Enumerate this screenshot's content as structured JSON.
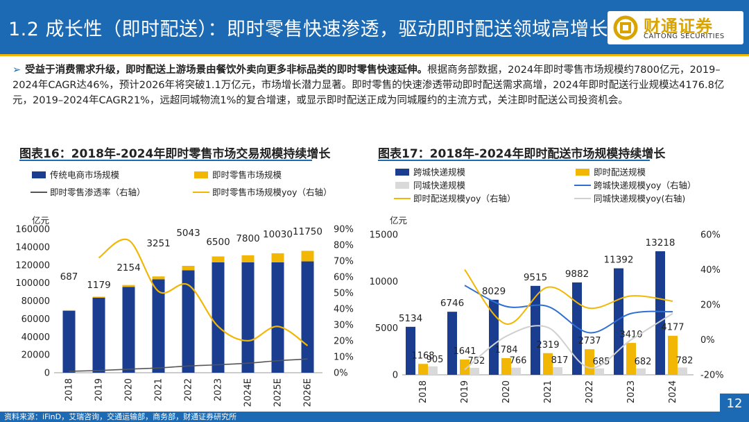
{
  "header": {
    "title": "1.2 成长性（即时配送）：即时零售快速渗透，驱动即时配送领域高增长",
    "logo_cn": "财通证券",
    "logo_en": "CAITONG SECURITIES",
    "brand_color": "#1c6ab4",
    "accent_color": "#f2b705"
  },
  "summary": {
    "bold": "受益于消费需求升级，即时配送上游场景由餐饮外卖向更多非标品类的即时零售快速延伸。",
    "text": "根据商务部数据，2024年即时零售市场规模约7800亿元，2019–2024年CAGR达46%，预计2026年将突破1.1万亿元，市场增长潜力显著。即时零售的快速渗透带动即时配送需求高增，2024年即时配送行业规模达4176.8亿元，2019–2024年CAGR21%，远超同城物流1%的复合增速，或显示即时配送正成为同城履约的主流方式，关注即时配送公司投资机会。"
  },
  "chart_titles": {
    "left": "图表16：2018年-2024年即时零售市场交易规模持续增长",
    "right": "图表17：2018年-2024年即时配送市场规模持续增长"
  },
  "footer": {
    "source": "资料来源：iFinD，艾瑞咨询，交通运输部，商务部，财通证券研究所",
    "page": "12"
  },
  "chart_data": [
    {
      "type": "bar",
      "stacked": true,
      "categories": [
        "2018",
        "2019",
        "2020",
        "2021",
        "2022",
        "2023",
        "2024E",
        "2025E",
        "2026E"
      ],
      "ylabel": "亿元",
      "ylim": [
        0,
        160000
      ],
      "yticks": [
        0,
        20000,
        40000,
        60000,
        80000,
        100000,
        120000,
        140000,
        160000
      ],
      "y2lim": [
        0,
        90
      ],
      "y2ticks": [
        "0%",
        "10%",
        "20%",
        "30%",
        "40%",
        "50%",
        "60%",
        "70%",
        "80%",
        "90%"
      ],
      "series": [
        {
          "name": "传统电商市场规模",
          "kind": "bar",
          "color": "#1a3d8f",
          "values": [
            69000,
            83500,
            95500,
            104000,
            114000,
            123000,
            123000,
            123000,
            124000
          ]
        },
        {
          "name": "即时零售市场规模",
          "kind": "bar",
          "color": "#f2b705",
          "values": [
            687,
            1179,
            2154,
            3251,
            5043,
            6500,
            7800,
            10030,
            11750
          ]
        },
        {
          "name": "即时零售渗透率（右轴）",
          "kind": "line",
          "axis": "right",
          "color": "#555555",
          "values": [
            0.9,
            1.4,
            2.2,
            3.0,
            4.2,
            5.0,
            6.0,
            7.5,
            8.6
          ]
        },
        {
          "name": "即时零售市场规模yoy（右轴）",
          "kind": "line",
          "axis": "right",
          "color": "#f2b705",
          "values": [
            null,
            72,
            83,
            51,
            55,
            29,
            20,
            29,
            17
          ]
        }
      ],
      "data_labels": [
        "687",
        "1179",
        "2154",
        "3251",
        "5043",
        "6500",
        "7800",
        "10030",
        "11750"
      ],
      "legend": [
        "传统电商市场规模",
        "即时零售市场规模",
        "即时零售渗透率（右轴）",
        "即时零售市场规模yoy（右轴）"
      ]
    },
    {
      "type": "bar",
      "categories": [
        "2018",
        "2019",
        "2020",
        "2021",
        "2022",
        "2023",
        "2024"
      ],
      "ylabel": "亿元",
      "ylim": [
        0,
        15000
      ],
      "yticks": [
        0,
        5000,
        10000,
        15000
      ],
      "y2lim": [
        -20,
        60
      ],
      "y2ticks": [
        "-20%",
        "0%",
        "20%",
        "40%",
        "60%"
      ],
      "series": [
        {
          "name": "跨城快递规模",
          "kind": "bar",
          "color": "#1a3d8f",
          "values": [
            5134,
            6746,
            8029,
            9515,
            9882,
            11392,
            13218
          ]
        },
        {
          "name": "即时配送规模",
          "kind": "bar",
          "color": "#f2b705",
          "values": [
            1168,
            1641,
            1784,
            2319,
            2737,
            3410,
            4177
          ]
        },
        {
          "name": "同城快递规模",
          "kind": "bar",
          "color": "#d9d9d9",
          "values": [
            905,
            752,
            766,
            817,
            685,
            682,
            782
          ]
        },
        {
          "name": "跨城快递规模yoy（右轴）",
          "kind": "line",
          "axis": "right",
          "color": "#2f6fd1",
          "values": [
            null,
            31,
            19,
            19,
            4,
            15,
            16
          ]
        },
        {
          "name": "即时配送规模yoy（右轴）",
          "kind": "line",
          "axis": "right",
          "color": "#f2b705",
          "values": [
            null,
            40,
            9,
            30,
            18,
            25,
            22
          ]
        },
        {
          "name": "同城快递规模yoy(右轴)",
          "kind": "line",
          "axis": "right",
          "color": "#d0d0d0",
          "values": [
            null,
            -17,
            2,
            7,
            -16,
            0,
            15
          ]
        }
      ],
      "data_labels_main": [
        "5134",
        "6746",
        "8029",
        "9515",
        "9882",
        "11392",
        "13218"
      ],
      "data_labels_instant": [
        "1168",
        "1641",
        "1784",
        "2319",
        "2737",
        "3410",
        "4177"
      ],
      "data_labels_city": [
        "905",
        "752",
        "766",
        "817",
        "685",
        "682",
        "782"
      ],
      "legend": [
        "跨城快递规模",
        "即时配送规模",
        "同城快递规模",
        "跨城快递规模yoy（右轴）",
        "即时配送规模yoy（右轴）",
        "同城快递规模yoy(右轴)"
      ]
    }
  ]
}
